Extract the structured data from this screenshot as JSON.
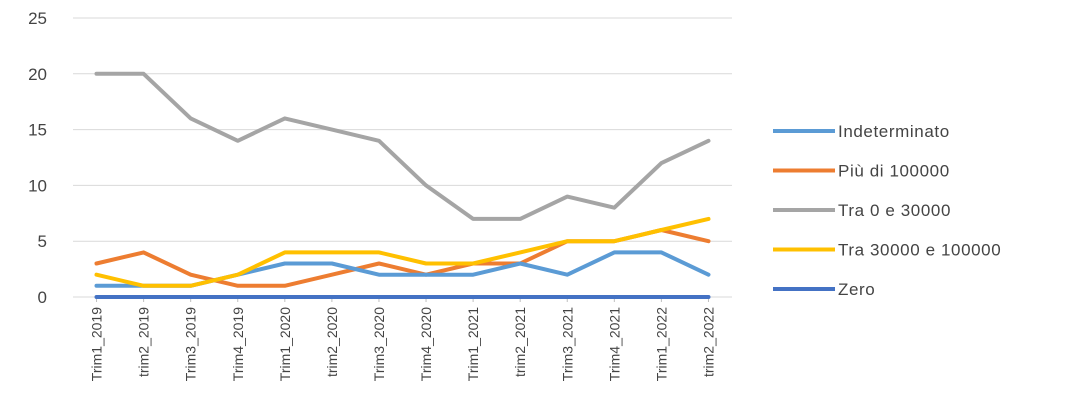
{
  "chart_data": {
    "type": "line",
    "title": "",
    "xlabel": "",
    "ylabel": "",
    "ylim": [
      0,
      25
    ],
    "yticks": [
      0,
      5,
      10,
      15,
      20,
      25
    ],
    "grid": true,
    "legend_position": "right",
    "categories": [
      "Trim1_2019",
      "trim2_2019",
      "Trim3_2019",
      "Trim4_2019",
      "Trim1_2020",
      "trim2_2020",
      "Trim3_2020",
      "Trim4_2020",
      "Trim1_2021",
      "trim2_2021",
      "Trim3_2021",
      "Trim4_2021",
      "Trim1_2022",
      "trim2_2022"
    ],
    "series": [
      {
        "name": "Indeterminato",
        "color": "#5b9bd5",
        "values": [
          1,
          1,
          1,
          2,
          3,
          3,
          2,
          2,
          2,
          3,
          2,
          4,
          4,
          2
        ]
      },
      {
        "name": "Più di 100000",
        "color": "#ed7d31",
        "values": [
          3,
          4,
          2,
          1,
          1,
          2,
          3,
          2,
          3,
          3,
          5,
          5,
          6,
          5
        ]
      },
      {
        "name": "Tra 0 e 30000",
        "color": "#a5a5a5",
        "values": [
          20,
          20,
          16,
          14,
          16,
          15,
          14,
          10,
          7,
          7,
          9,
          8,
          12,
          14
        ]
      },
      {
        "name": "Tra 30000 e 100000",
        "color": "#ffc000",
        "values": [
          2,
          1,
          1,
          2,
          4,
          4,
          4,
          3,
          3,
          4,
          5,
          5,
          6,
          7
        ]
      },
      {
        "name": "Zero",
        "color": "#4472c4",
        "values": [
          0,
          0,
          0,
          0,
          0,
          0,
          0,
          0,
          0,
          0,
          0,
          0,
          0,
          0
        ]
      }
    ]
  }
}
